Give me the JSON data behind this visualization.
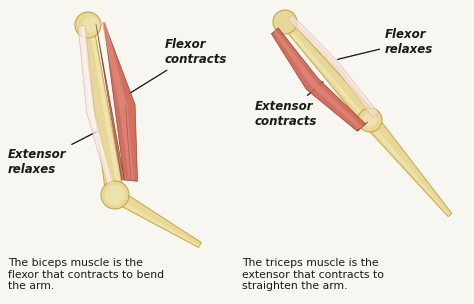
{
  "bg_color": "#f8f6f0",
  "caption_left": "The biceps muscle is the\nflexor that contracts to bend\nthe arm.",
  "caption_right": "The triceps muscle is the\nextensor that contracts to\nstraighten the arm.",
  "bone_color": "#e8d898",
  "bone_edge_color": "#c8a840",
  "bone_highlight": "#f5ecc0",
  "muscle_red_dark": "#c04030",
  "muscle_red_mid": "#d06050",
  "muscle_red_light": "#e09080",
  "muscle_pale": "#f0c8b8",
  "muscle_white": "#f8e8e0",
  "text_color": "#1a1a1a",
  "line_color": "#111111"
}
